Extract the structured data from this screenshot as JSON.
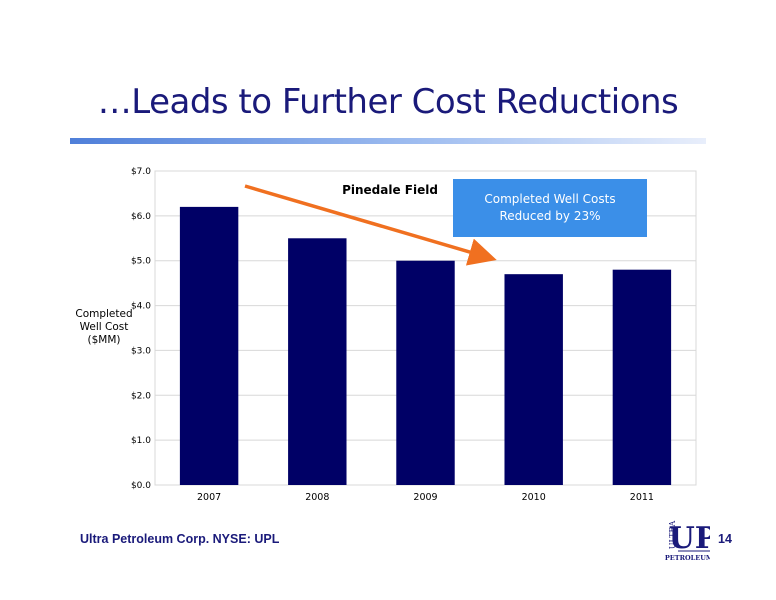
{
  "slide": {
    "title": "…Leads to Further Cost Reductions",
    "footer": "Ultra Petroleum Corp. NYSE: UPL",
    "page_number": "14",
    "logo": {
      "top_text": "ULTRA",
      "mark": "UP",
      "bottom_text": "PETROLEUM"
    }
  },
  "chart_data": {
    "type": "bar",
    "title": "Pinedale Field",
    "ylabel": [
      "Completed",
      "Well Cost",
      "($MM)"
    ],
    "categories": [
      "2007",
      "2008",
      "2009",
      "2010",
      "2011"
    ],
    "values": [
      6.2,
      5.5,
      5.0,
      4.7,
      4.8
    ],
    "ylim": [
      0,
      7
    ],
    "yticks": [
      0,
      1,
      2,
      3,
      4,
      5,
      6,
      7
    ],
    "ytick_labels": [
      "$0.0",
      "$1.0",
      "$2.0",
      "$3.0",
      "$4.0",
      "$5.0",
      "$6.0",
      "$7.0"
    ],
    "grid": true,
    "legend": false,
    "bar_color": "#000066",
    "annotation": {
      "lines": [
        "Completed Well Costs",
        "Reduced by 23%"
      ],
      "color": "#3b8fe8",
      "arrow_color": "#f07020"
    }
  }
}
